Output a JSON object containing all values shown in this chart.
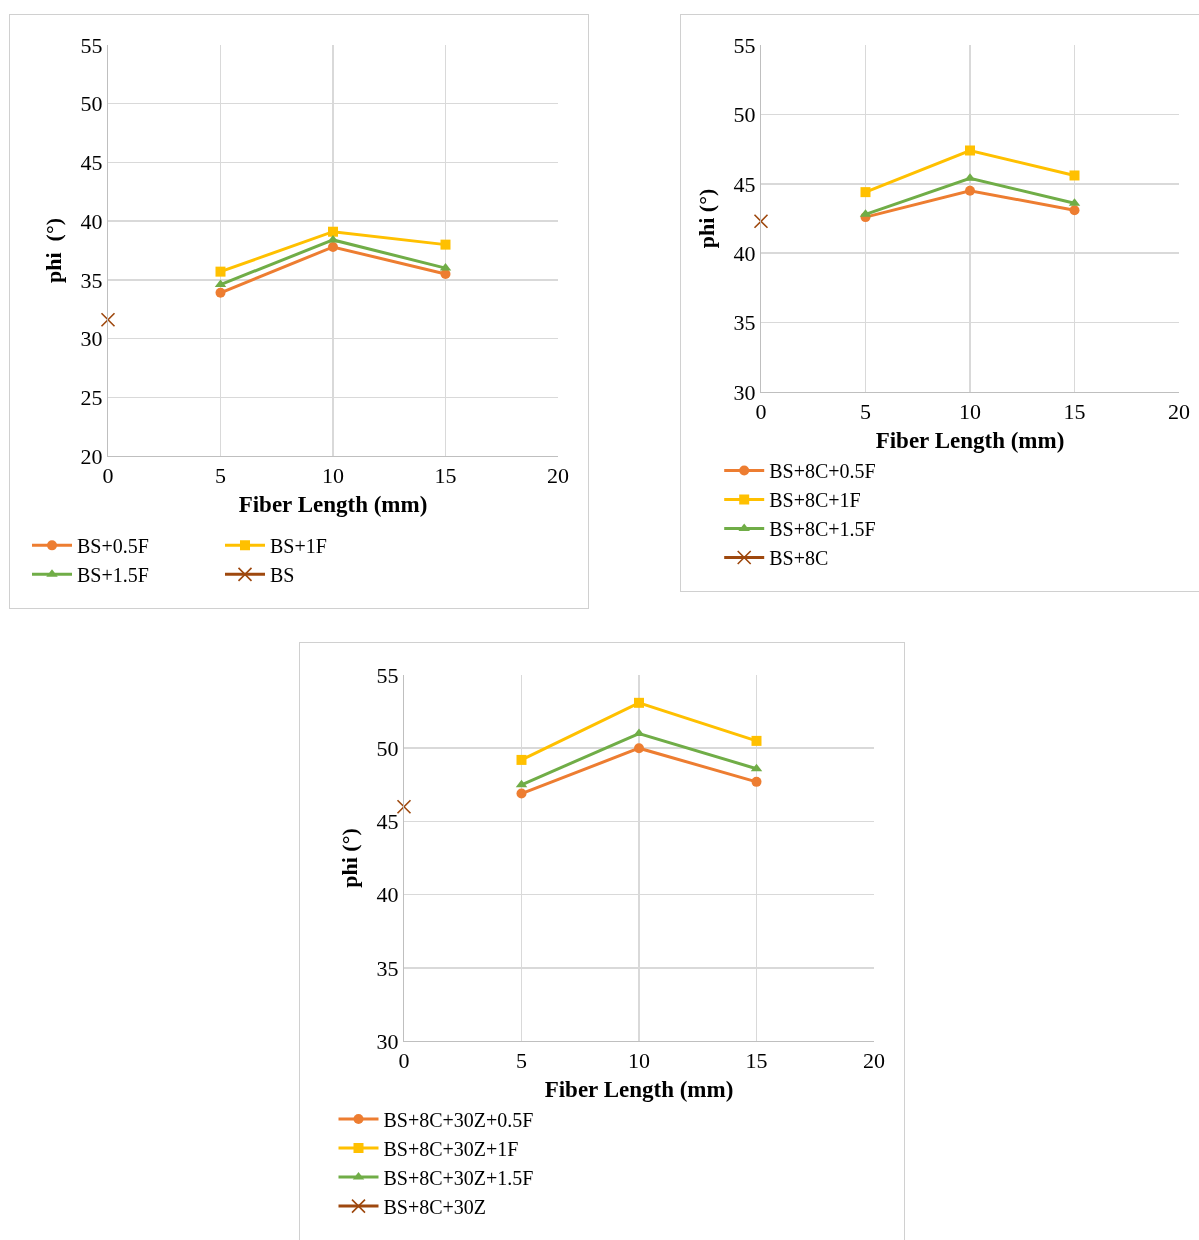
{
  "chart_data": [
    {
      "type": "line",
      "xlabel": "Fiber Length (mm)",
      "ylabel": "phi  (°)",
      "xlim": [
        0,
        20
      ],
      "xticks": [
        0,
        5,
        10,
        15,
        20
      ],
      "ylim": [
        20,
        55
      ],
      "yticks": [
        20,
        25,
        30,
        35,
        40,
        45,
        50,
        55
      ],
      "grid": true,
      "legend": "bottom",
      "line_style": "solid",
      "series": [
        {
          "name": "BS+0.5F",
          "color": "#ed7d31",
          "marker": "circle",
          "x": [
            5,
            10,
            15
          ],
          "values": [
            33.9,
            37.8,
            35.5
          ]
        },
        {
          "name": "BS+1F",
          "color": "#ffc000",
          "marker": "square",
          "x": [
            5,
            10,
            15
          ],
          "values": [
            35.7,
            39.1,
            38.0
          ]
        },
        {
          "name": "BS+1.5F",
          "color": "#70ad47",
          "marker": "triangle",
          "x": [
            5,
            10,
            15
          ],
          "values": [
            34.6,
            38.4,
            36.0
          ]
        },
        {
          "name": "BS",
          "color": "#9e480e",
          "marker": "cross",
          "x": [
            0
          ],
          "values": [
            31.6
          ]
        }
      ]
    },
    {
      "type": "line",
      "xlabel": "Fiber Length (mm)",
      "ylabel": "phi (°)",
      "xlim": [
        0,
        20
      ],
      "xticks": [
        0,
        5,
        10,
        15,
        20
      ],
      "ylim": [
        30,
        55
      ],
      "yticks": [
        30,
        35,
        40,
        45,
        50,
        55
      ],
      "grid": true,
      "legend": "bottom",
      "line_style": "solid",
      "series": [
        {
          "name": "BS+8C+0.5F",
          "color": "#ed7d31",
          "marker": "circle",
          "x": [
            5,
            10,
            15
          ],
          "values": [
            42.6,
            44.5,
            43.1
          ]
        },
        {
          "name": "BS+8C+1F",
          "color": "#ffc000",
          "marker": "square",
          "x": [
            5,
            10,
            15
          ],
          "values": [
            44.4,
            47.4,
            45.6
          ]
        },
        {
          "name": "BS+8C+1.5F",
          "color": "#70ad47",
          "marker": "triangle",
          "x": [
            5,
            10,
            15
          ],
          "values": [
            42.8,
            45.4,
            43.6
          ]
        },
        {
          "name": "BS+8C",
          "color": "#9e480e",
          "marker": "cross",
          "x": [
            0
          ],
          "values": [
            42.3
          ]
        }
      ]
    },
    {
      "type": "line",
      "xlabel": "Fiber Length (mm)",
      "ylabel": "phi (°)",
      "xlim": [
        0,
        20
      ],
      "xticks": [
        0,
        5,
        10,
        15,
        20
      ],
      "ylim": [
        30,
        55
      ],
      "yticks": [
        30,
        35,
        40,
        45,
        50,
        55
      ],
      "grid": true,
      "legend": "bottom",
      "line_style": "solid",
      "series": [
        {
          "name": "BS+8C+30Z+0.5F",
          "color": "#ed7d31",
          "marker": "circle",
          "x": [
            5,
            10,
            15
          ],
          "values": [
            46.9,
            50.0,
            47.7
          ]
        },
        {
          "name": "BS+8C+30Z+1F",
          "color": "#ffc000",
          "marker": "square",
          "x": [
            5,
            10,
            15
          ],
          "values": [
            49.2,
            53.1,
            50.5
          ]
        },
        {
          "name": "BS+8C+30Z+1.5F",
          "color": "#70ad47",
          "marker": "triangle",
          "x": [
            5,
            10,
            15
          ],
          "values": [
            47.5,
            51.0,
            48.6
          ]
        },
        {
          "name": "BS+8C+30Z",
          "color": "#9e480e",
          "marker": "cross",
          "x": [
            0
          ],
          "values": [
            46.0
          ]
        }
      ]
    }
  ]
}
